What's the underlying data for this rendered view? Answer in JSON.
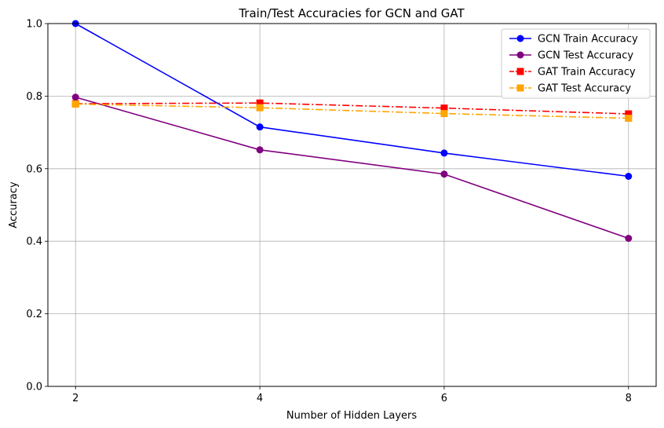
{
  "chart_data": {
    "type": "line",
    "title": "Train/Test Accuracies for GCN and GAT",
    "xlabel": "Number of Hidden Layers",
    "ylabel": "Accuracy",
    "x": [
      2,
      4,
      6,
      8
    ],
    "xticks": [
      "2",
      "4",
      "6",
      "8"
    ],
    "yticks": [
      "0.0",
      "0.2",
      "0.4",
      "0.6",
      "0.8",
      "1.0"
    ],
    "xlim": [
      1.7,
      8.3
    ],
    "ylim": [
      0,
      1
    ],
    "grid": true,
    "legend_position": "top-right",
    "series": [
      {
        "name": "GCN Train Accuracy",
        "values": [
          1.0,
          0.715,
          0.643,
          0.579
        ],
        "color": "#0000ff",
        "marker": "circle",
        "dash": "solid"
      },
      {
        "name": "GCN Test Accuracy",
        "values": [
          0.797,
          0.652,
          0.585,
          0.408
        ],
        "color": "#800080",
        "marker": "circle",
        "dash": "solid"
      },
      {
        "name": "GAT Train Accuracy",
        "values": [
          0.779,
          0.781,
          0.767,
          0.751
        ],
        "color": "#ff0000",
        "marker": "square",
        "dash": "dashdot"
      },
      {
        "name": "GAT Test Accuracy",
        "values": [
          0.778,
          0.768,
          0.752,
          0.739
        ],
        "color": "#ffa500",
        "marker": "square",
        "dash": "dashdot"
      }
    ]
  }
}
